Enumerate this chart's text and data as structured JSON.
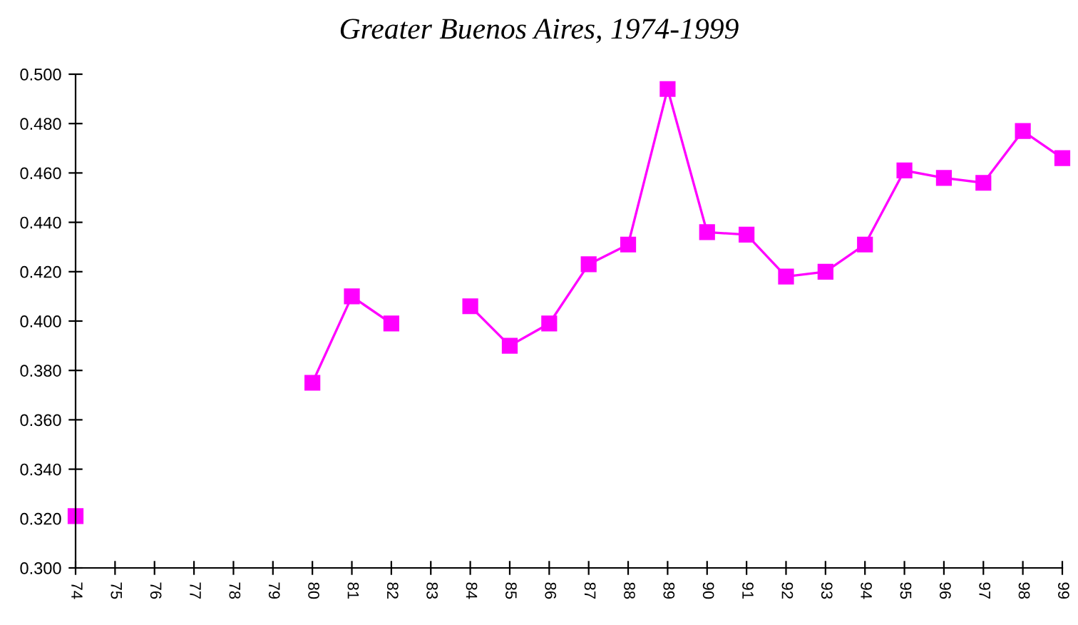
{
  "chart_data": {
    "type": "line",
    "title": "Greater Buenos Aires, 1974-1999",
    "categories": [
      "74",
      "75",
      "76",
      "77",
      "78",
      "79",
      "80",
      "81",
      "82",
      "83",
      "84",
      "85",
      "86",
      "87",
      "88",
      "89",
      "90",
      "91",
      "92",
      "93",
      "94",
      "95",
      "96",
      "97",
      "98",
      "99"
    ],
    "series": [
      {
        "color": "#ff00ff",
        "values": [
          0.321,
          null,
          null,
          null,
          null,
          null,
          0.375,
          0.41,
          0.399,
          null,
          0.406,
          0.39,
          0.399,
          0.423,
          0.431,
          0.494,
          0.436,
          0.435,
          0.418,
          0.42,
          0.431,
          0.461,
          0.458,
          0.456,
          0.477,
          0.466
        ]
      }
    ],
    "ylim": [
      0.3,
      0.5
    ],
    "yticks": [
      {
        "value": 0.3,
        "label": "0.300"
      },
      {
        "value": 0.32,
        "label": "0.320"
      },
      {
        "value": 0.34,
        "label": "0.340"
      },
      {
        "value": 0.36,
        "label": "0.360"
      },
      {
        "value": 0.38,
        "label": "0.380"
      },
      {
        "value": 0.4,
        "label": "0.400"
      },
      {
        "value": 0.42,
        "label": "0.420"
      },
      {
        "value": 0.44,
        "label": "0.440"
      },
      {
        "value": 0.46,
        "label": "0.460"
      },
      {
        "value": 0.48,
        "label": "0.480"
      },
      {
        "value": 0.5,
        "label": "0.500"
      }
    ],
    "marker": "square",
    "line_style": "solid",
    "grid": false,
    "legend": false
  }
}
